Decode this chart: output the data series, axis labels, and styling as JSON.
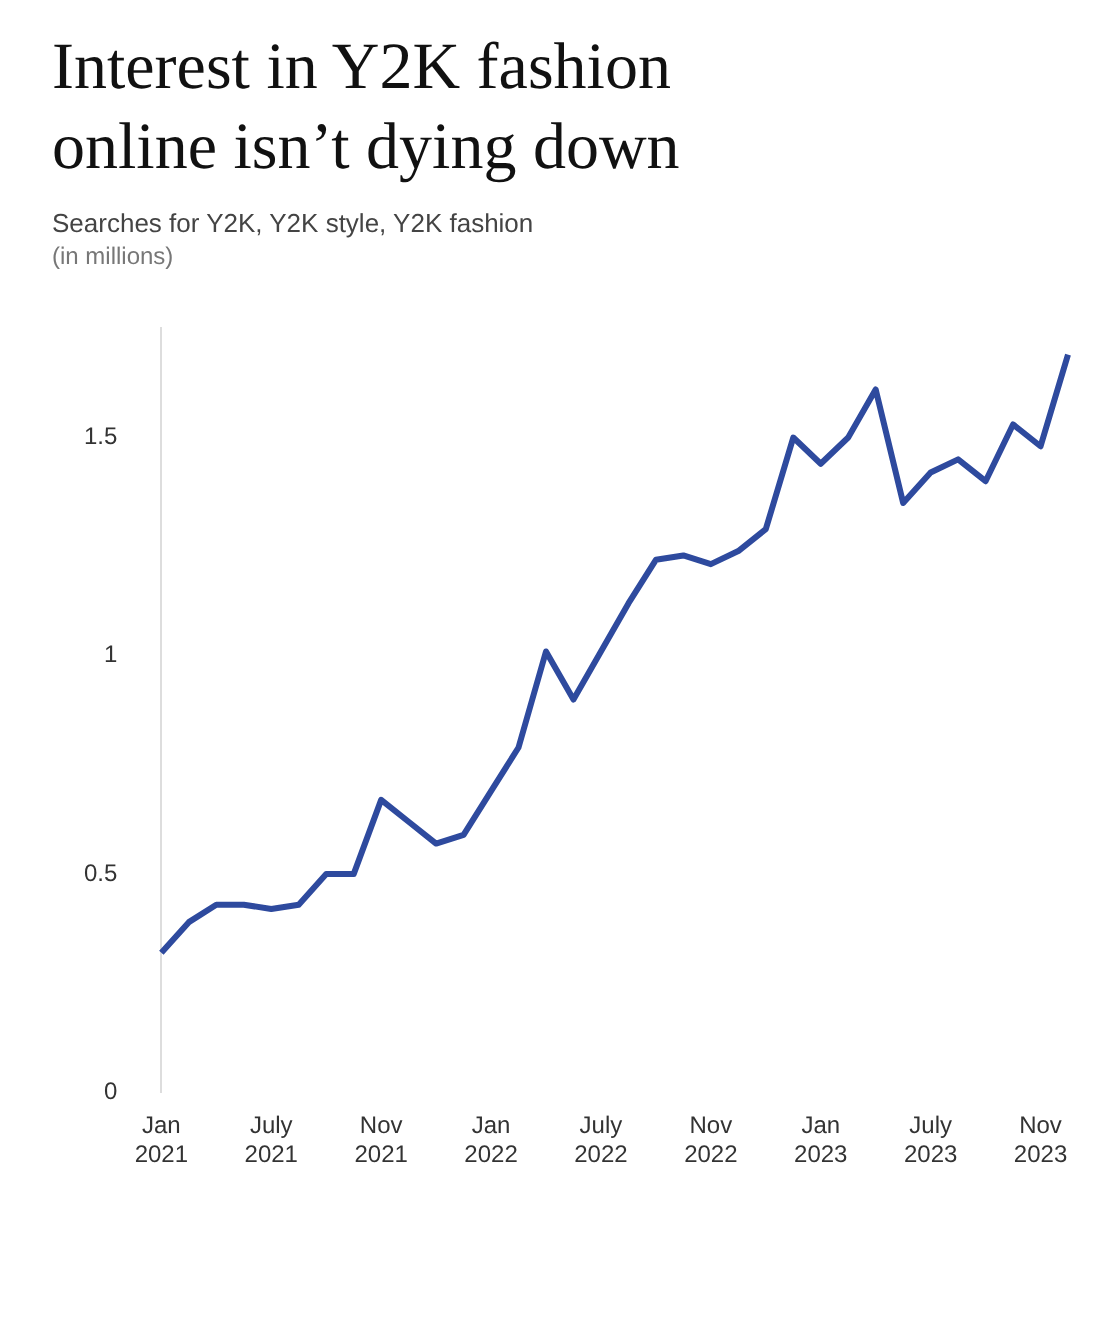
{
  "chart_data": {
    "type": "line",
    "title": "Interest in Y2K fashion online isn’t dying down",
    "subtitle": "Searches for Y2K, Y2K style, Y2K fashion",
    "annotations": [
      "(in millions)"
    ],
    "categories": [
      "Jan 2021",
      null,
      null,
      null,
      "July 2021",
      null,
      null,
      null,
      "Nov 2021",
      null,
      null,
      null,
      "Jan 2022",
      null,
      null,
      null,
      "July 2022",
      null,
      null,
      null,
      "Nov 2022",
      null,
      null,
      null,
      "Jan 2023",
      null,
      null,
      null,
      "July 2023",
      null,
      null,
      null,
      "Nov 2023",
      null
    ],
    "series": [
      {
        "color": "#2e4a9e",
        "values": [
          0.32,
          0.39,
          0.43,
          0.43,
          0.42,
          0.43,
          0.5,
          0.5,
          0.67,
          0.62,
          0.57,
          0.59,
          0.69,
          0.79,
          1.01,
          0.9,
          1.01,
          1.12,
          1.22,
          1.23,
          1.21,
          1.24,
          1.29,
          1.5,
          1.44,
          1.5,
          1.61,
          1.35,
          1.42,
          1.45,
          1.4,
          1.53,
          1.48,
          1.69
        ]
      }
    ],
    "ylim": [
      0,
      1.75
    ],
    "yticks": [
      0,
      0.5,
      1,
      1.5
    ],
    "grid": false,
    "legend": false,
    "marker": "none",
    "line_style": "solid"
  }
}
